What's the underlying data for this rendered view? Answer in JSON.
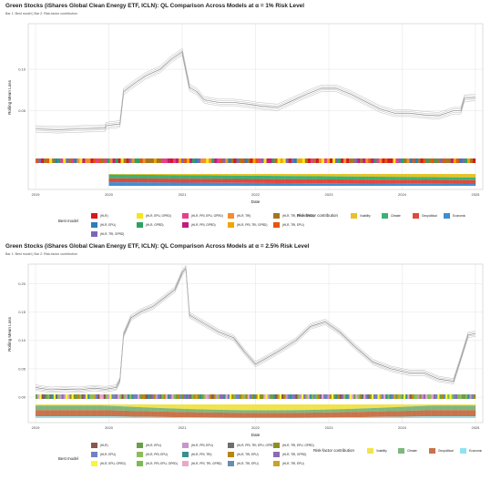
{
  "chart_data": [
    {
      "type": "line",
      "title": "Green Stocks (iShares Global Clean Energy ETF, ICLN): QL Comparison Across Models at  α = 1% Risk Level",
      "subtitle": "Bar 1: Best model | Bar 2: Risk-factor contribution",
      "xlabel": "Date",
      "ylabel": "Rolling Mean Loss",
      "ylim": [
        -0.045,
        0.155
      ],
      "yticks": [
        0.05,
        0.1
      ],
      "ytick_labels": [
        "0.05",
        "0.10"
      ],
      "xticks": [
        "2019",
        "2020",
        "2021",
        "2022",
        "2023",
        "2024",
        "2025"
      ],
      "xrange": [
        2018.9,
        2025.1
      ],
      "grid": true,
      "series": [
        {
          "x": [
            2019.0,
            2019.3,
            2019.6,
            2019.95,
            2019.96,
            2020.15,
            2020.2,
            2020.35,
            2020.5,
            2020.7,
            2020.85,
            2021.0,
            2021.1,
            2021.2,
            2021.3,
            2021.5,
            2021.7,
            2021.9,
            2022.05,
            2022.3,
            2022.5,
            2022.7,
            2022.9,
            2023.1,
            2023.3,
            2023.5,
            2023.7,
            2023.9,
            2024.1,
            2024.3,
            2024.5,
            2024.7,
            2024.8,
            2024.85,
            2025.0
          ],
          "y": [
            0.028,
            0.027,
            0.028,
            0.029,
            0.032,
            0.034,
            0.073,
            0.083,
            0.092,
            0.1,
            0.112,
            0.121,
            0.078,
            0.073,
            0.063,
            0.06,
            0.06,
            0.058,
            0.056,
            0.054,
            0.062,
            0.07,
            0.077,
            0.077,
            0.07,
            0.061,
            0.052,
            0.047,
            0.047,
            0.045,
            0.044,
            0.05,
            0.05,
            0.065,
            0.066
          ]
        }
      ],
      "bar_rows": [
        "Bar 1: Best model",
        "Bar 2: Risk-factor contribution"
      ],
      "legend": {
        "placement": "bottom",
        "best_model_title": "Best model",
        "best_model": [
          {
            "label": "(HLR)",
            "color": "#d7191c"
          },
          {
            "label": "(HLR, EPU, GPRD)",
            "color": "#f5e61b"
          },
          {
            "label": "(HLR, PRI, EPU, GPRD)",
            "color": "#e83e8c"
          },
          {
            "label": "(HLR, TRI)",
            "color": "#f28e2b"
          },
          {
            "label": "(HLR, TRI, EPU, GPRD)",
            "color": "#a6761d"
          },
          {
            "label": "(HLR, EPU)",
            "color": "#2a7fba"
          },
          {
            "label": "(HLR, GPRD)",
            "color": "#2ca25f"
          },
          {
            "label": "(HLR, PRI, GPRD)",
            "color": "#c51b7d"
          },
          {
            "label": "(HLR, PRI, TRI, GPRD)",
            "color": "#f0a500"
          },
          {
            "label": "(HLR, TRI, EPU)",
            "color": "#e6550d"
          },
          {
            "label": "(HLR, TRI, GPRD)",
            "color": "#7b68b5"
          }
        ],
        "risk_factor_title": "Risk-factor contribution",
        "risk_factors": [
          {
            "label": "Volatility",
            "color": "#e6c229"
          },
          {
            "label": "Climate",
            "color": "#3bb273"
          },
          {
            "label": "Geopolitical",
            "color": "#e1483e"
          },
          {
            "label": "Economic",
            "color": "#3d8fd1"
          }
        ]
      }
    },
    {
      "type": "line",
      "title": "Green Stocks (iShares Global Clean Energy ETF, ICLN): QL Comparison Across Models at  α = 2.5% Risk Level",
      "subtitle": "Bar 1: Best model | Bar 2: Risk-factor contribution",
      "xlabel": "Date",
      "ylabel": "Rolling Mean Loss",
      "ylim": [
        -0.045,
        0.235
      ],
      "yticks": [
        0.0,
        0.05,
        0.1,
        0.15,
        0.2
      ],
      "ytick_labels": [
        "0.00",
        "0.05",
        "0.10",
        "0.15",
        "0.20"
      ],
      "xticks": [
        "2019",
        "2020",
        "2021",
        "2022",
        "2023",
        "2024",
        "2025"
      ],
      "xrange": [
        2018.9,
        2025.1
      ],
      "grid": true,
      "series": [
        {
          "x": [
            2019.0,
            2019.2,
            2019.4,
            2019.6,
            2019.8,
            2019.95,
            2020.1,
            2020.15,
            2020.2,
            2020.3,
            2020.45,
            2020.6,
            2020.75,
            2020.9,
            2021.0,
            2021.05,
            2021.1,
            2021.3,
            2021.5,
            2021.7,
            2021.85,
            2022.0,
            2022.3,
            2022.55,
            2022.75,
            2022.95,
            2023.15,
            2023.35,
            2023.6,
            2023.85,
            2024.1,
            2024.3,
            2024.5,
            2024.7,
            2024.78,
            2024.9,
            2025.0
          ],
          "y": [
            0.017,
            0.013,
            0.014,
            0.013,
            0.016,
            0.014,
            0.017,
            0.03,
            0.11,
            0.14,
            0.152,
            0.16,
            0.175,
            0.19,
            0.22,
            0.228,
            0.145,
            0.13,
            0.115,
            0.105,
            0.08,
            0.058,
            0.08,
            0.1,
            0.125,
            0.133,
            0.115,
            0.09,
            0.062,
            0.05,
            0.043,
            0.043,
            0.032,
            0.028,
            0.06,
            0.11,
            0.112
          ]
        }
      ],
      "bar_rows": [
        "Bar 1: Best model",
        "Bar 2: Risk-factor contribution"
      ],
      "legend": {
        "placement": "bottom",
        "best_model_title": "Best model",
        "best_model": [
          {
            "label": "(HLR)",
            "color": "#8c564b"
          },
          {
            "label": "(HLR, EPU)",
            "color": "#6b9e4a"
          },
          {
            "label": "(HLR, PRI, EPU)",
            "color": "#c996c9"
          },
          {
            "label": "(HLR, PRI, TRI, EPU, GPRD)",
            "color": "#6e6e6e"
          },
          {
            "label": "(HLR, TRI, EPU, GPRD)",
            "color": "#8f8f1e"
          },
          {
            "label": "(HLR, EPU)",
            "color": "#7080c0"
          },
          {
            "label": "(HLR, PRI, EPU)",
            "color": "#8fbc5a"
          },
          {
            "label": "(HLR, PRI, TRI)",
            "color": "#3a8f8f"
          },
          {
            "label": "(HLR, TRI, EPU)",
            "color": "#b8860b"
          },
          {
            "label": "(HLR, TRI, GPRD)",
            "color": "#8c6bb1"
          },
          {
            "label": "(HLR, EPU, GPRD)",
            "color": "#f7f73a"
          },
          {
            "label": "(HLR, PRI, EPU, GPRD)",
            "color": "#7dbb4f"
          },
          {
            "label": "(HLR, PRI, TRI, GPRD)",
            "color": "#e9a8c9"
          },
          {
            "label": "(HLR, TRI, EPU)",
            "color": "#6a8caf"
          },
          {
            "label": "(HLR, TRI, EPU)",
            "color": "#c9a227"
          }
        ],
        "risk_factor_title": "Risk-factor contribution",
        "risk_factors": [
          {
            "label": "Volatility",
            "color": "#f2e34c"
          },
          {
            "label": "Climate",
            "color": "#7fb77e"
          },
          {
            "label": "Geopolitical",
            "color": "#c9734a"
          },
          {
            "label": "Economic",
            "color": "#8ee3f0"
          }
        ]
      }
    }
  ]
}
